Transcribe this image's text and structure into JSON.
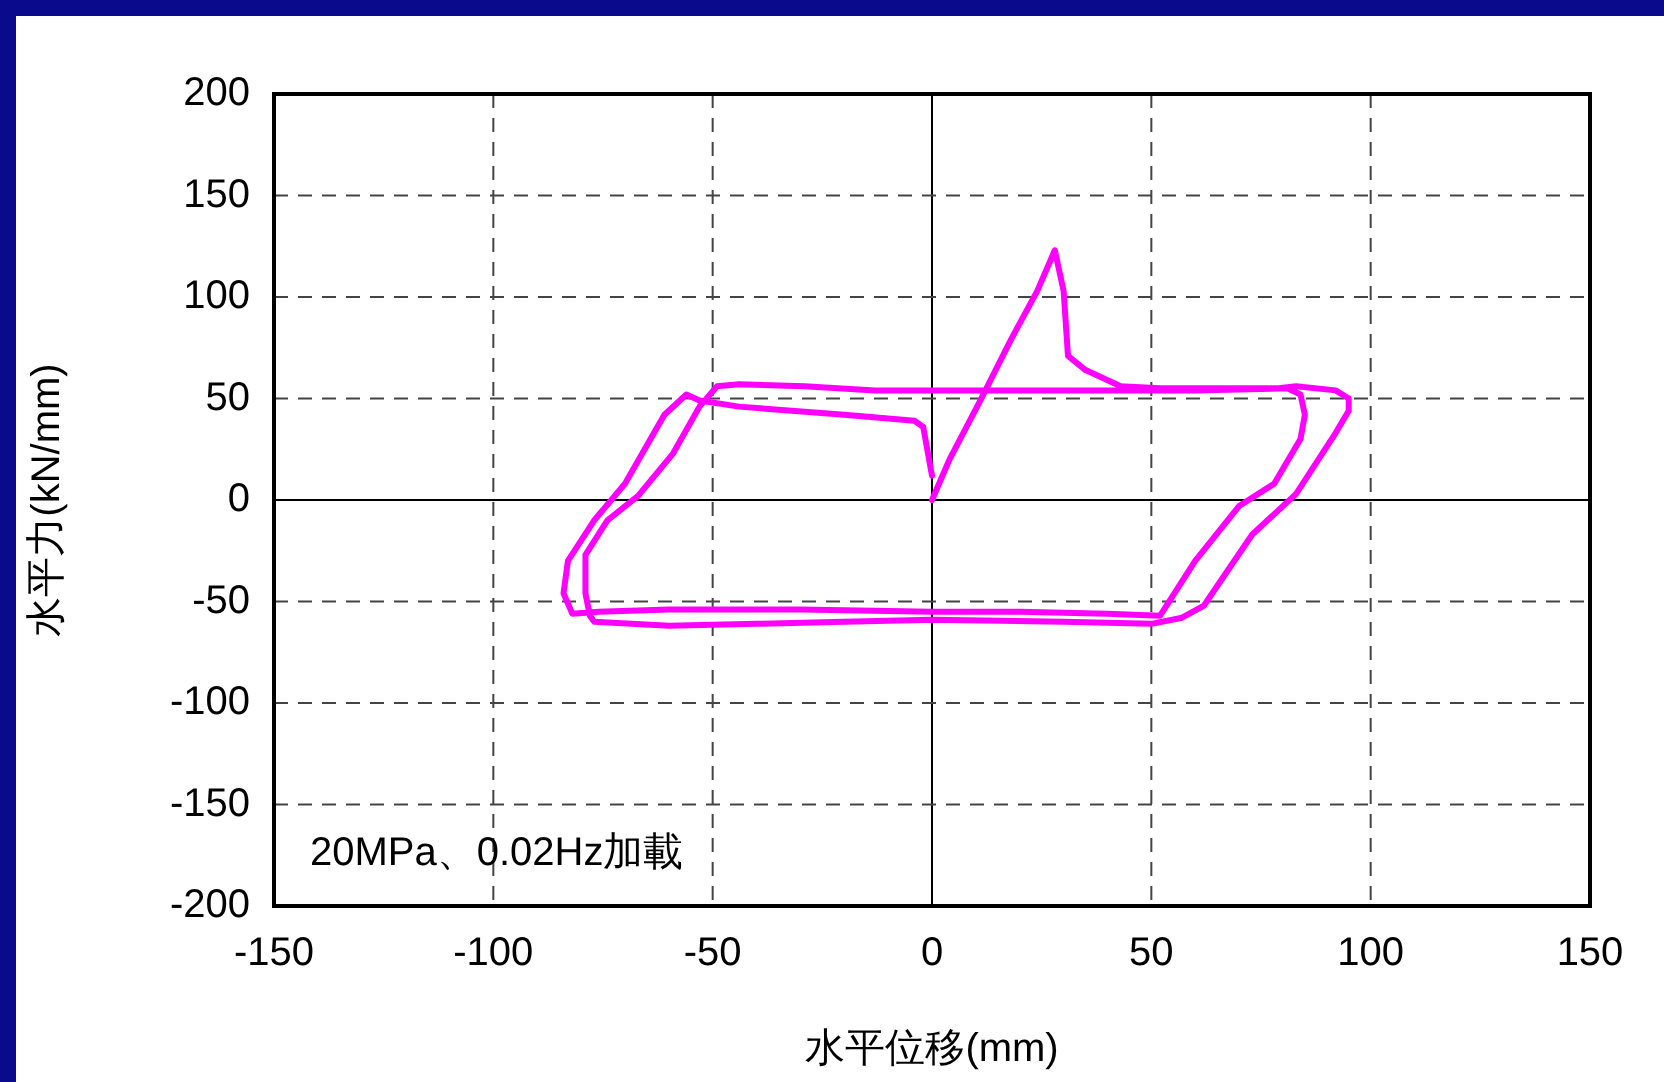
{
  "chart_data": {
    "type": "line",
    "xlabel": "水平位移(mm)",
    "ylabel": "水平力(kN/mm)",
    "annotations": [
      "20MPa、0.02Hz加載"
    ],
    "xlim": [
      -150,
      150
    ],
    "xticks": [
      -150,
      -100,
      -50,
      0,
      50,
      100,
      150
    ],
    "ylim": [
      -200,
      200
    ],
    "yticks": [
      -200,
      -150,
      -100,
      -50,
      0,
      50,
      100,
      150,
      200
    ],
    "grid": true,
    "legend": false,
    "marker": "none",
    "line_style": "solid",
    "series": [
      {
        "color": "#ff00ff",
        "x": [
          0,
          4,
          11,
          18,
          24,
          28,
          30,
          31,
          35,
          43,
          52,
          65,
          79,
          83,
          92,
          95,
          95,
          92,
          83,
          73,
          62,
          57,
          50,
          30,
          0,
          -20,
          -40,
          -60,
          -77,
          -78,
          -79,
          -79,
          -74,
          -67,
          -59,
          -53,
          -49,
          -44,
          -29,
          -13,
          0,
          20,
          40,
          60,
          81,
          84,
          85,
          84,
          78,
          70,
          60,
          52,
          40,
          20,
          0,
          -30,
          -60,
          -76,
          -82,
          -84,
          -83,
          -77,
          -70,
          -61,
          -56,
          -53,
          -44,
          -20,
          -4,
          -2,
          0
        ],
        "values": [
          0,
          20,
          49,
          79,
          103,
          123,
          103,
          71,
          64,
          56,
          55,
          55,
          55,
          56,
          54,
          50,
          44,
          33,
          3,
          -17,
          -52,
          -58,
          -61,
          -60,
          -59,
          -60,
          -61,
          -62,
          -60,
          -57,
          -46,
          -27,
          -10,
          2,
          23,
          46,
          56,
          57,
          56,
          54,
          54,
          54,
          54,
          54,
          55,
          52,
          42,
          30,
          8,
          -3,
          -30,
          -57,
          -56,
          -55,
          -55,
          -54,
          -54,
          -55,
          -56,
          -46,
          -30,
          -10,
          8,
          42,
          52,
          49,
          46,
          42,
          39,
          36,
          12
        ]
      }
    ]
  }
}
